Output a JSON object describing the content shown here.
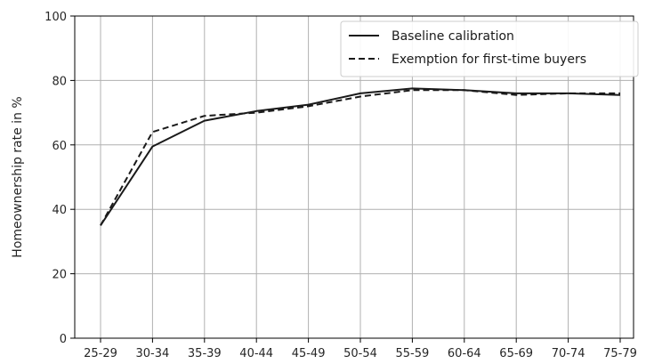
{
  "chart_data": {
    "type": "line",
    "title": "",
    "xlabel": "",
    "ylabel": "Homeownership rate in %",
    "categories": [
      "25-29",
      "30-34",
      "35-39",
      "40-44",
      "45-49",
      "50-54",
      "55-59",
      "60-64",
      "65-69",
      "70-74",
      "75-79"
    ],
    "ylim": [
      0,
      100
    ],
    "yticks": [
      0,
      20,
      40,
      60,
      80,
      100
    ],
    "grid": true,
    "legend_position": "top-right",
    "series": [
      {
        "name": "Baseline calibration",
        "line_style": "solid",
        "color": "#1a1a1a",
        "values": [
          35,
          59.5,
          67.5,
          70.5,
          72.5,
          76,
          77.5,
          77,
          76,
          76,
          75.5
        ]
      },
      {
        "name": "Exemption for first-time buyers",
        "line_style": "dashed",
        "color": "#1a1a1a",
        "values": [
          35,
          64,
          69,
          70,
          72,
          75,
          77,
          77,
          75.5,
          76,
          76
        ]
      }
    ]
  }
}
